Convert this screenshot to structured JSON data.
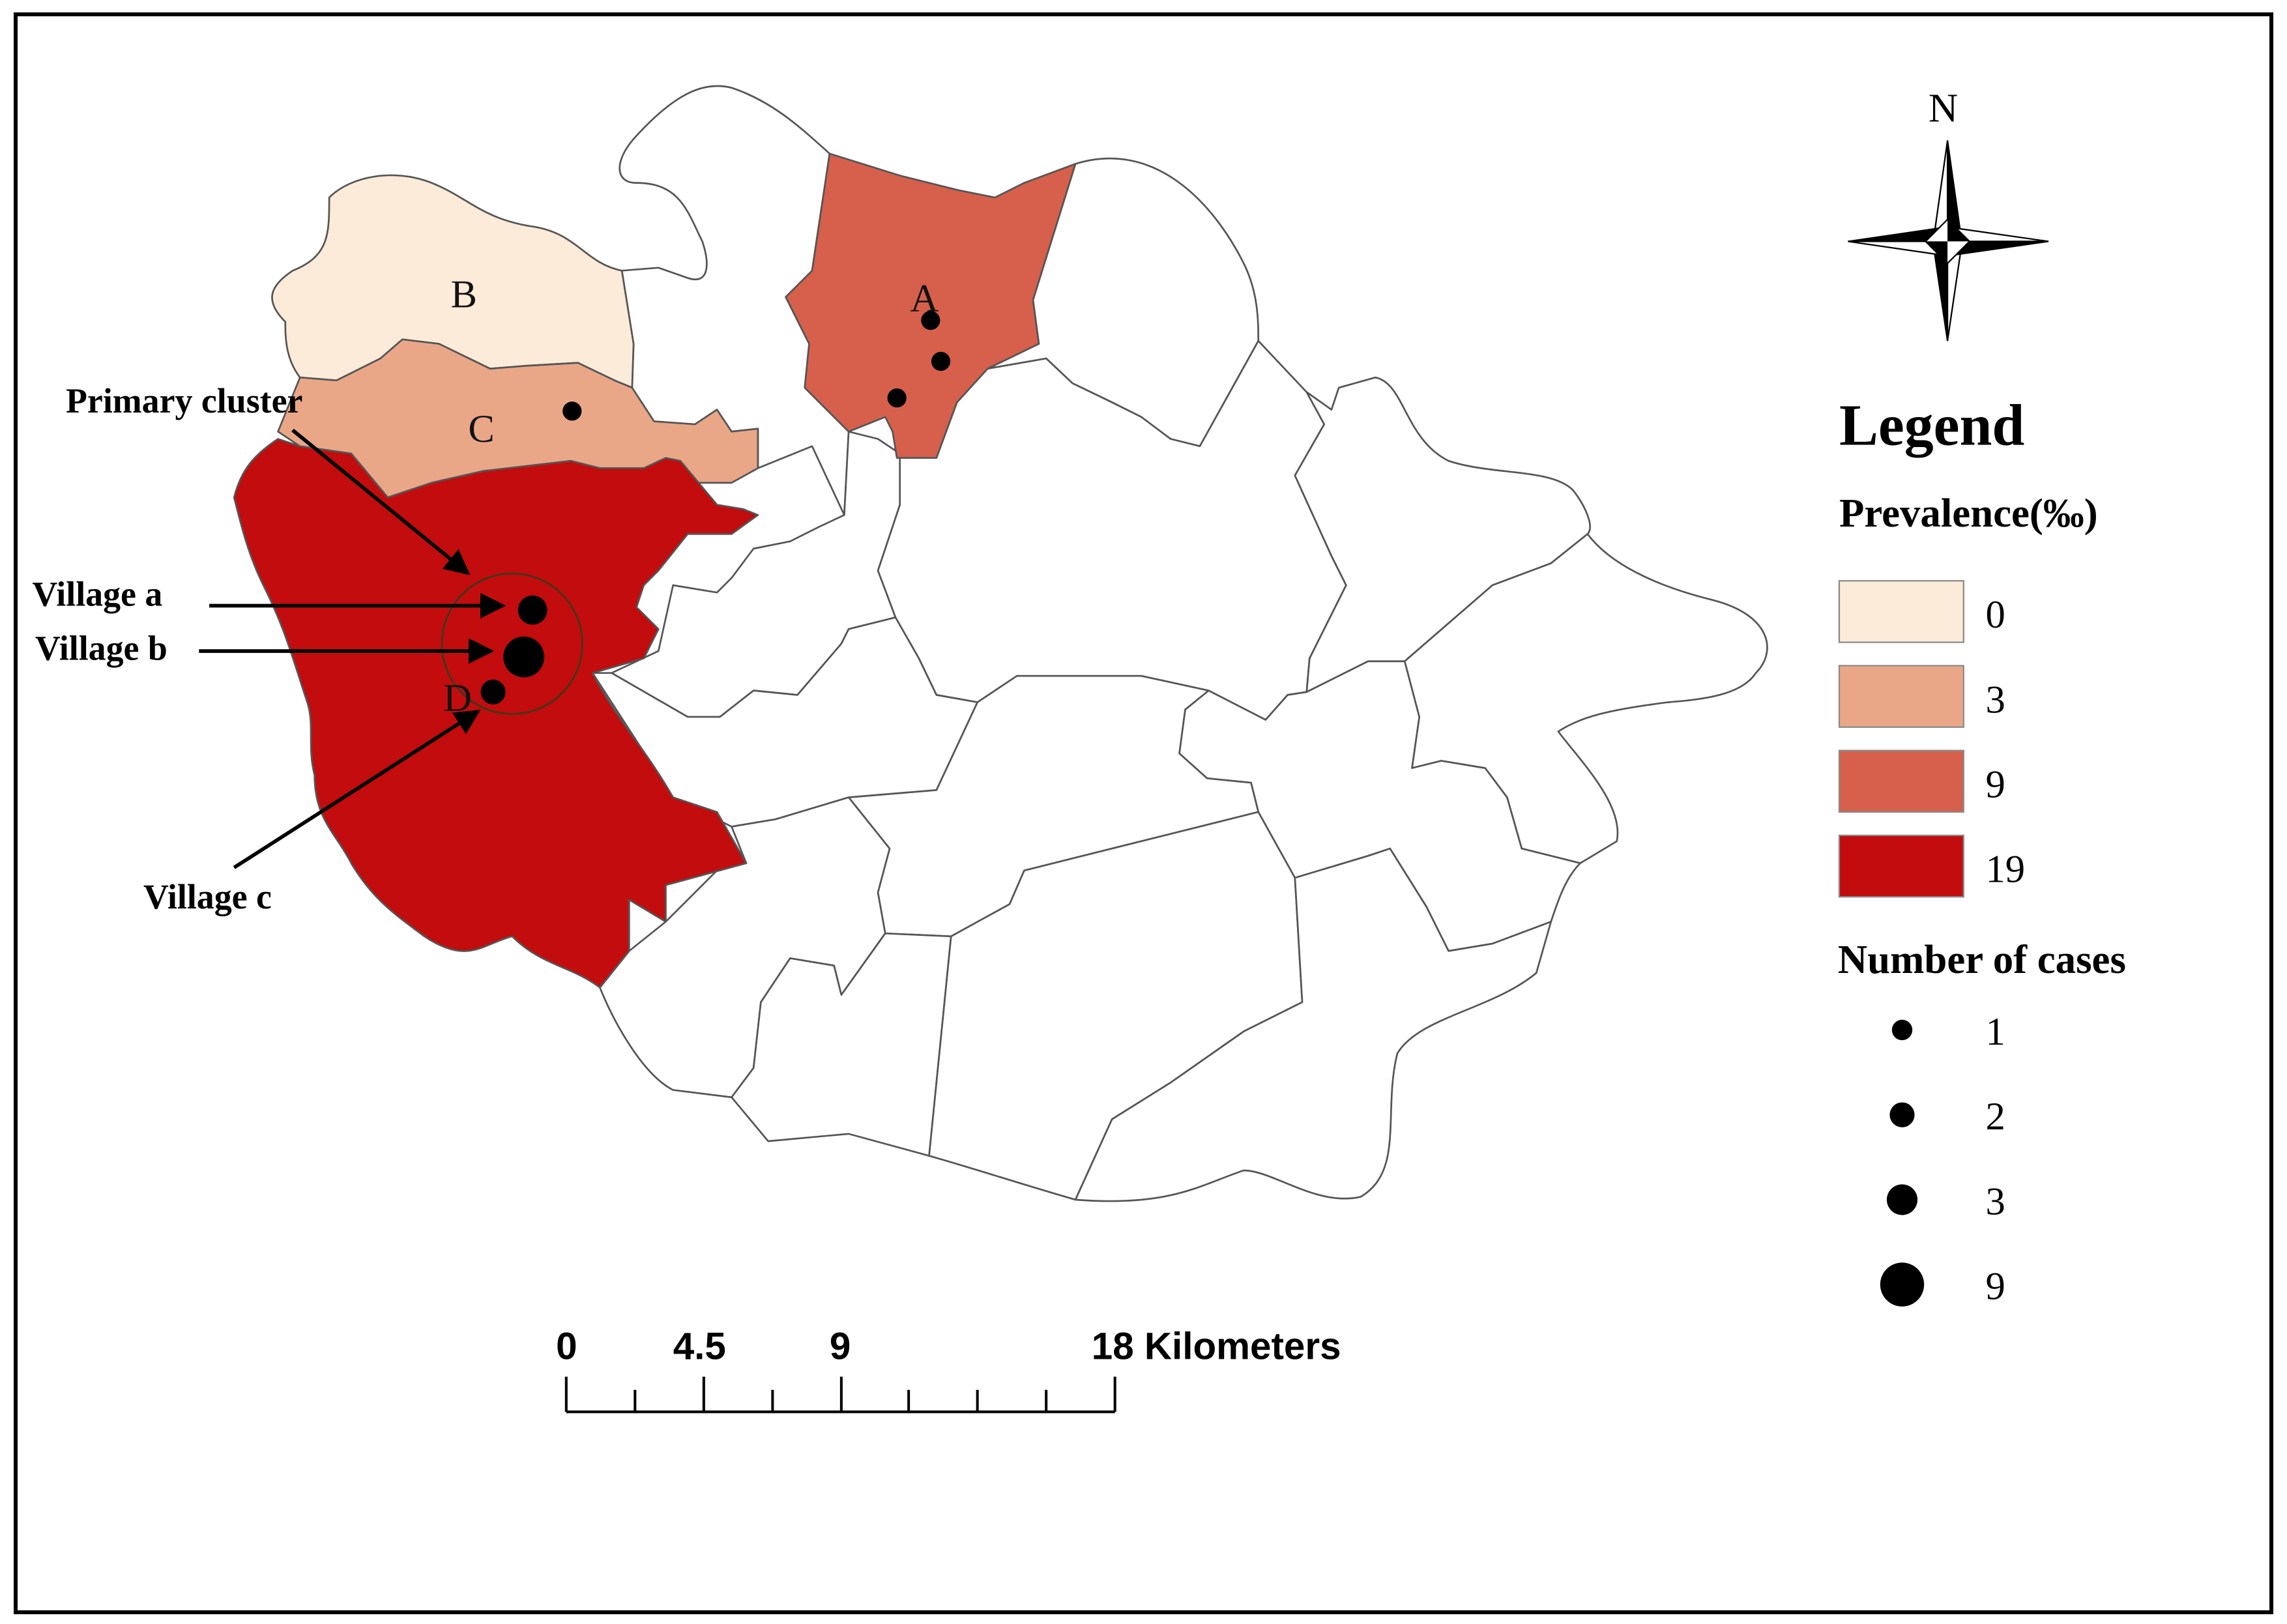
{
  "map": {
    "region_labels": {
      "a": "A",
      "b": "B",
      "c": "C",
      "d": "D"
    },
    "annotations": {
      "primary_cluster": "Primary cluster",
      "village_a": "Village a",
      "village_b": "Village b",
      "village_c": "Village c"
    },
    "colors": {
      "prev_0": "#fdebd9",
      "prev_3": "#e9a787",
      "prev_9": "#d6604b",
      "prev_19": "#c20c0e",
      "boundary": "#555555",
      "case_dot": "#000000"
    }
  },
  "compass": {
    "north": "N"
  },
  "legend": {
    "title": "Legend",
    "prevalence_title": "Prevalence(‰)",
    "prevalence_items": [
      {
        "label": "0",
        "color": "#fdebd9"
      },
      {
        "label": "3",
        "color": "#e9a787"
      },
      {
        "label": "9",
        "color": "#d6604b"
      },
      {
        "label": "19",
        "color": "#c20c0e"
      }
    ],
    "cases_title": "Number of cases",
    "cases_items": [
      {
        "label": "1",
        "cases": 1
      },
      {
        "label": "2",
        "cases": 2
      },
      {
        "label": "3",
        "cases": 3
      },
      {
        "label": "9",
        "cases": 9
      }
    ]
  },
  "scale_bar": {
    "tick_labels": [
      "0",
      "4.5",
      "9",
      "18 Kilometers"
    ]
  }
}
